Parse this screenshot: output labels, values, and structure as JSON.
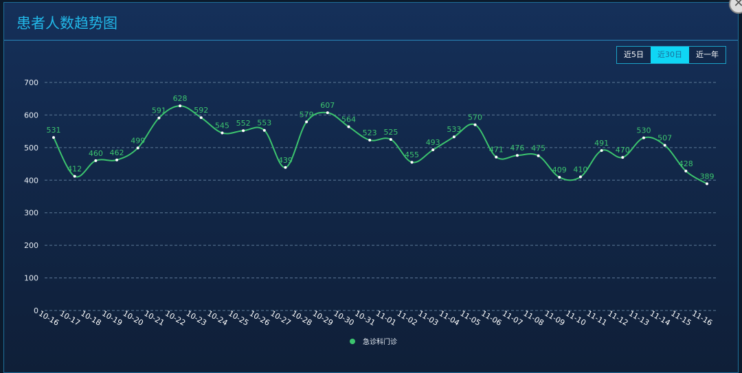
{
  "title": "患者人数趋势图",
  "range_buttons": [
    {
      "label": "近5日",
      "active": false
    },
    {
      "label": "近30日",
      "active": true
    },
    {
      "label": "近一年",
      "active": false
    }
  ],
  "colors": {
    "line": "#3cc46e",
    "accent": "#0fd6f5",
    "title": "#22b8e8"
  },
  "chart_data": {
    "type": "line",
    "smooth": true,
    "categories": [
      "10-16",
      "10-17",
      "10-18",
      "10-19",
      "10-20",
      "10-21",
      "10-22",
      "10-23",
      "10-24",
      "10-25",
      "10-26",
      "10-27",
      "10-28",
      "10-29",
      "10-30",
      "10-31",
      "11-01",
      "11-02",
      "11-03",
      "11-04",
      "11-05",
      "11-06",
      "11-07",
      "11-08",
      "11-09",
      "11-10",
      "11-11",
      "11-12",
      "11-13",
      "11-14",
      "11-15",
      "11-16"
    ],
    "series": [
      {
        "name": "急诊科门诊",
        "values": [
          531,
          412,
          460,
          462,
          499,
          591,
          628,
          592,
          545,
          552,
          553,
          439,
          579,
          607,
          564,
          523,
          525,
          455,
          493,
          533,
          570,
          471,
          476,
          475,
          409,
          410,
          491,
          470,
          530,
          507,
          428,
          389
        ]
      }
    ],
    "yticks": [
      0,
      100,
      200,
      300,
      400,
      500,
      600,
      700
    ],
    "ylim": [
      0,
      700
    ],
    "grid": true,
    "legend_position": "bottom-center"
  }
}
